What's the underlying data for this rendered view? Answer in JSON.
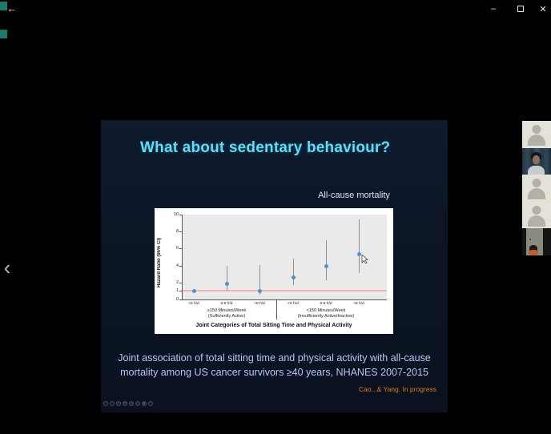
{
  "window_controls": {
    "back_icon": "←",
    "minimize_icon": "–",
    "close_icon": "✕",
    "prev_chevron_icon": "‹"
  },
  "slide": {
    "title": "What about sedentary behaviour?",
    "chart_caption": "All-cause mortality",
    "citation_line1": "Joint association of total sitting time and physical activity with all-cause",
    "citation_line2": "mortality among US cancer survivors ≥40 years, NHANES 2007-2015",
    "source_note": "Cao...& Yang. In progress",
    "presenter_toolbar": [
      {
        "name": "prev-slide-icon",
        "glyph": "‹"
      },
      {
        "name": "next-slide-icon",
        "glyph": "›"
      },
      {
        "name": "pen-icon",
        "glyph": "✎"
      },
      {
        "name": "all-slides-icon",
        "glyph": "⊞"
      },
      {
        "name": "zoom-icon",
        "glyph": "⊕"
      },
      {
        "name": "captions-icon",
        "glyph": "▭"
      },
      {
        "name": "camera-icon",
        "glyph": "◉"
      },
      {
        "name": "more-options-icon",
        "glyph": "⋯"
      }
    ]
  },
  "chart_data": {
    "type": "scatter",
    "subtype": "forest-plot",
    "title": "All-cause mortality",
    "ylabel": "Hazard Ratio (95% CI)",
    "xlabel": "Joint Categories of Total Sitting Time and Physical Activity",
    "ylim": [
      0,
      10
    ],
    "yticks": [
      0,
      1,
      2,
      4,
      6,
      8,
      10
    ],
    "reference_line": 1,
    "grid": false,
    "legend": "none",
    "categories": [
      "<6 h/d",
      "6-8 h/d",
      ">8 h/d",
      "<6 h/d",
      "6-8 h/d",
      ">8 h/d"
    ],
    "groups": [
      {
        "label": "≥150 Minutes/Week",
        "sublabel": "(Sufficiently Active)",
        "category_indices": [
          0,
          1,
          2
        ]
      },
      {
        "label": "<150 Minutes/Week",
        "sublabel": "(Insufficiently Active/Inactive)",
        "category_indices": [
          3,
          4,
          5
        ]
      }
    ],
    "series": [
      {
        "name": "Hazard Ratio",
        "values": [
          1.0,
          1.8,
          1.0,
          2.6,
          3.9,
          5.3
        ],
        "ci_low": [
          null,
          1.0,
          0.6,
          1.7,
          2.3,
          3.1
        ],
        "ci_high": [
          null,
          4.0,
          4.1,
          4.8,
          7.0,
          9.4
        ]
      }
    ],
    "colors": {
      "point": "#4e90d6",
      "ci": "#8f8f8f",
      "reference": "#f4b4ab",
      "panel": "#ffffff",
      "plot_bg": "#eaeaea"
    }
  },
  "participants": [
    {
      "type": "avatar",
      "label": "participant-1"
    },
    {
      "type": "video-person",
      "label": "participant-2"
    },
    {
      "type": "avatar",
      "label": "participant-3"
    },
    {
      "type": "avatar",
      "label": "participant-4"
    },
    {
      "type": "video-room",
      "label": "participant-5"
    }
  ],
  "accent_colors": {
    "title_cyan": "#5edff2",
    "citation_blue": "#b7c7ec",
    "source_orange": "#e2791c",
    "teal_marker": "#1d7a68"
  }
}
